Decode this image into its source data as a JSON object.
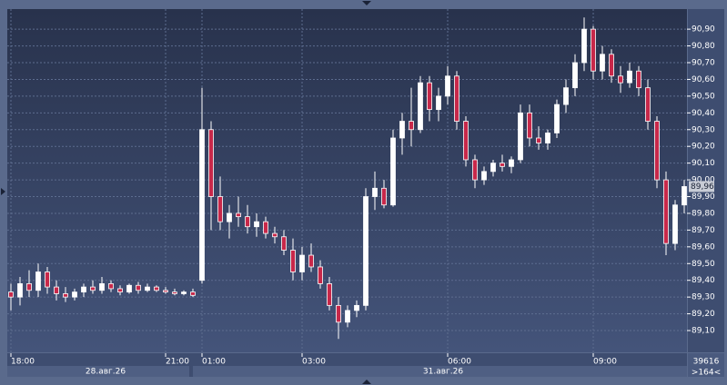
{
  "chart_data": {
    "type": "candlestick",
    "ohlc": [
      [
        89.33,
        89.38,
        89.22,
        89.3
      ],
      [
        89.3,
        89.42,
        89.25,
        89.38
      ],
      [
        89.38,
        89.46,
        89.3,
        89.34
      ],
      [
        89.34,
        89.5,
        89.3,
        89.45
      ],
      [
        89.45,
        89.48,
        89.32,
        89.36
      ],
      [
        89.36,
        89.4,
        89.28,
        89.32
      ],
      [
        89.32,
        89.36,
        89.27,
        89.3
      ],
      [
        89.3,
        89.35,
        89.28,
        89.33
      ],
      [
        89.33,
        89.38,
        89.3,
        89.36
      ],
      [
        89.36,
        89.4,
        89.32,
        89.34
      ],
      [
        89.34,
        89.42,
        89.32,
        89.38
      ],
      [
        89.38,
        89.4,
        89.33,
        89.35
      ],
      [
        89.35,
        89.37,
        89.31,
        89.33
      ],
      [
        89.33,
        89.38,
        89.32,
        89.37
      ],
      [
        89.37,
        89.39,
        89.32,
        89.34
      ],
      [
        89.34,
        89.38,
        89.33,
        89.36
      ],
      [
        89.36,
        89.37,
        89.33,
        89.34
      ],
      [
        89.34,
        89.36,
        89.32,
        89.33
      ],
      [
        89.33,
        89.35,
        89.31,
        89.32
      ],
      [
        89.32,
        89.34,
        89.31,
        89.33
      ],
      [
        89.33,
        89.35,
        89.3,
        89.31
      ],
      [
        89.4,
        90.55,
        89.38,
        90.3
      ],
      [
        90.3,
        90.35,
        89.7,
        89.9
      ],
      [
        89.9,
        90.02,
        89.7,
        89.75
      ],
      [
        89.75,
        89.85,
        89.65,
        89.8
      ],
      [
        89.8,
        89.9,
        89.72,
        89.78
      ],
      [
        89.78,
        89.85,
        89.68,
        89.72
      ],
      [
        89.72,
        89.8,
        89.66,
        89.75
      ],
      [
        89.75,
        89.78,
        89.65,
        89.68
      ],
      [
        89.68,
        89.72,
        89.62,
        89.66
      ],
      [
        89.66,
        89.7,
        89.55,
        89.58
      ],
      [
        89.58,
        89.65,
        89.4,
        89.45
      ],
      [
        89.45,
        89.6,
        89.4,
        89.55
      ],
      [
        89.55,
        89.62,
        89.45,
        89.48
      ],
      [
        89.48,
        89.52,
        89.35,
        89.38
      ],
      [
        89.38,
        89.42,
        89.22,
        89.25
      ],
      [
        89.25,
        89.3,
        89.05,
        89.15
      ],
      [
        89.15,
        89.25,
        89.12,
        89.22
      ],
      [
        89.22,
        89.28,
        89.18,
        89.25
      ],
      [
        89.25,
        89.95,
        89.22,
        89.9
      ],
      [
        89.9,
        90.05,
        89.82,
        89.95
      ],
      [
        89.95,
        90.0,
        89.83,
        89.85
      ],
      [
        89.85,
        90.3,
        89.84,
        90.25
      ],
      [
        90.25,
        90.4,
        90.15,
        90.35
      ],
      [
        90.35,
        90.55,
        90.2,
        90.3
      ],
      [
        90.3,
        90.62,
        90.28,
        90.58
      ],
      [
        90.58,
        90.62,
        90.35,
        90.42
      ],
      [
        90.42,
        90.55,
        90.35,
        90.5
      ],
      [
        90.5,
        90.68,
        90.45,
        90.62
      ],
      [
        90.62,
        90.65,
        90.3,
        90.35
      ],
      [
        90.35,
        90.38,
        90.08,
        90.12
      ],
      [
        90.12,
        90.15,
        89.95,
        90.0
      ],
      [
        90.0,
        90.08,
        89.97,
        90.05
      ],
      [
        90.05,
        90.12,
        90.02,
        90.1
      ],
      [
        90.1,
        90.15,
        90.05,
        90.08
      ],
      [
        90.08,
        90.14,
        90.04,
        90.12
      ],
      [
        90.12,
        90.45,
        90.1,
        90.4
      ],
      [
        90.4,
        90.45,
        90.2,
        90.25
      ],
      [
        90.25,
        90.32,
        90.18,
        90.22
      ],
      [
        90.22,
        90.3,
        90.18,
        90.28
      ],
      [
        90.28,
        90.48,
        90.25,
        90.45
      ],
      [
        90.45,
        90.6,
        90.4,
        90.55
      ],
      [
        90.55,
        90.75,
        90.5,
        90.7
      ],
      [
        90.7,
        90.97,
        90.65,
        90.9
      ],
      [
        90.9,
        90.92,
        90.6,
        90.65
      ],
      [
        90.65,
        90.8,
        90.6,
        90.75
      ],
      [
        90.75,
        90.78,
        90.58,
        90.62
      ],
      [
        90.62,
        90.68,
        90.52,
        90.58
      ],
      [
        90.58,
        90.7,
        90.55,
        90.65
      ],
      [
        90.65,
        90.68,
        90.5,
        90.55
      ],
      [
        90.55,
        90.6,
        90.3,
        90.35
      ],
      [
        90.35,
        90.38,
        89.95,
        90.0
      ],
      [
        90.0,
        90.05,
        89.55,
        89.62
      ],
      [
        89.62,
        89.88,
        89.58,
        89.85
      ],
      [
        89.85,
        90.0,
        89.8,
        89.96
      ]
    ],
    "up_color": "#ffffff",
    "down_color": "#c8284a",
    "ylim": [
      88.97,
      91.02
    ],
    "yticks": [
      {
        "value": 89.1,
        "label": "89,10"
      },
      {
        "value": 89.2,
        "label": "89,20"
      },
      {
        "value": 89.3,
        "label": "89,30"
      },
      {
        "value": 89.4,
        "label": "89,40"
      },
      {
        "value": 89.5,
        "label": "89,50"
      },
      {
        "value": 89.6,
        "label": "89,60"
      },
      {
        "value": 89.7,
        "label": "89,70"
      },
      {
        "value": 89.8,
        "label": "89,80"
      },
      {
        "value": 89.9,
        "label": "89,90"
      },
      {
        "value": 90.0,
        "label": "90,00"
      },
      {
        "value": 90.1,
        "label": "90,10"
      },
      {
        "value": 90.2,
        "label": "90,20"
      },
      {
        "value": 90.3,
        "label": "90,30"
      },
      {
        "value": 90.4,
        "label": "90,40"
      },
      {
        "value": 90.5,
        "label": "90,50"
      },
      {
        "value": 90.6,
        "label": "90,60"
      },
      {
        "value": 90.7,
        "label": "90,70"
      },
      {
        "value": 90.8,
        "label": "90,80"
      },
      {
        "value": 90.9,
        "label": "90,90"
      }
    ],
    "xticks": [
      {
        "value": 0,
        "label": "18:00"
      },
      {
        "value": 17,
        "label": "21:00"
      },
      {
        "value": 21,
        "label": "01:00"
      },
      {
        "value": 32,
        "label": "03:00"
      },
      {
        "value": 48,
        "label": "06:00"
      },
      {
        "value": 64,
        "label": "09:00"
      }
    ],
    "dates": [
      "28.авг.26",
      "31.авг.26"
    ],
    "last_price": {
      "value": 89.96,
      "label": "89,96"
    },
    "footer": [
      "39616",
      ">164<"
    ],
    "grid": true
  }
}
